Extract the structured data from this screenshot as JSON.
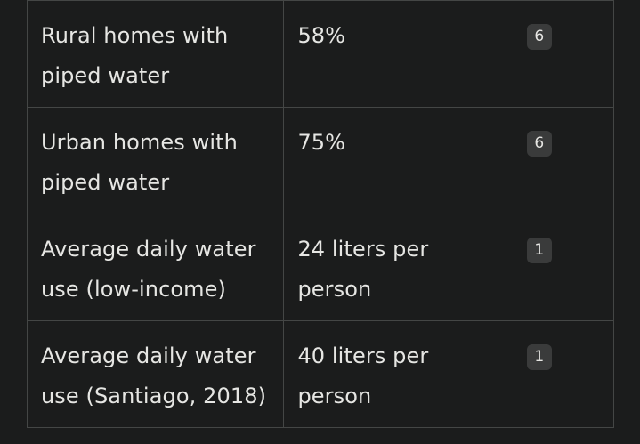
{
  "table": {
    "rows": [
      {
        "label": "Rural homes with piped water",
        "value": "58%",
        "citation": "6"
      },
      {
        "label": "Urban homes with piped water",
        "value": "75%",
        "citation": "6"
      },
      {
        "label": "Average daily water use (low-income)",
        "value": "24 liters per person",
        "citation": "1"
      },
      {
        "label": "Average daily water use (Santiago, 2018)",
        "value": "40 liters per person",
        "citation": "1"
      }
    ]
  }
}
